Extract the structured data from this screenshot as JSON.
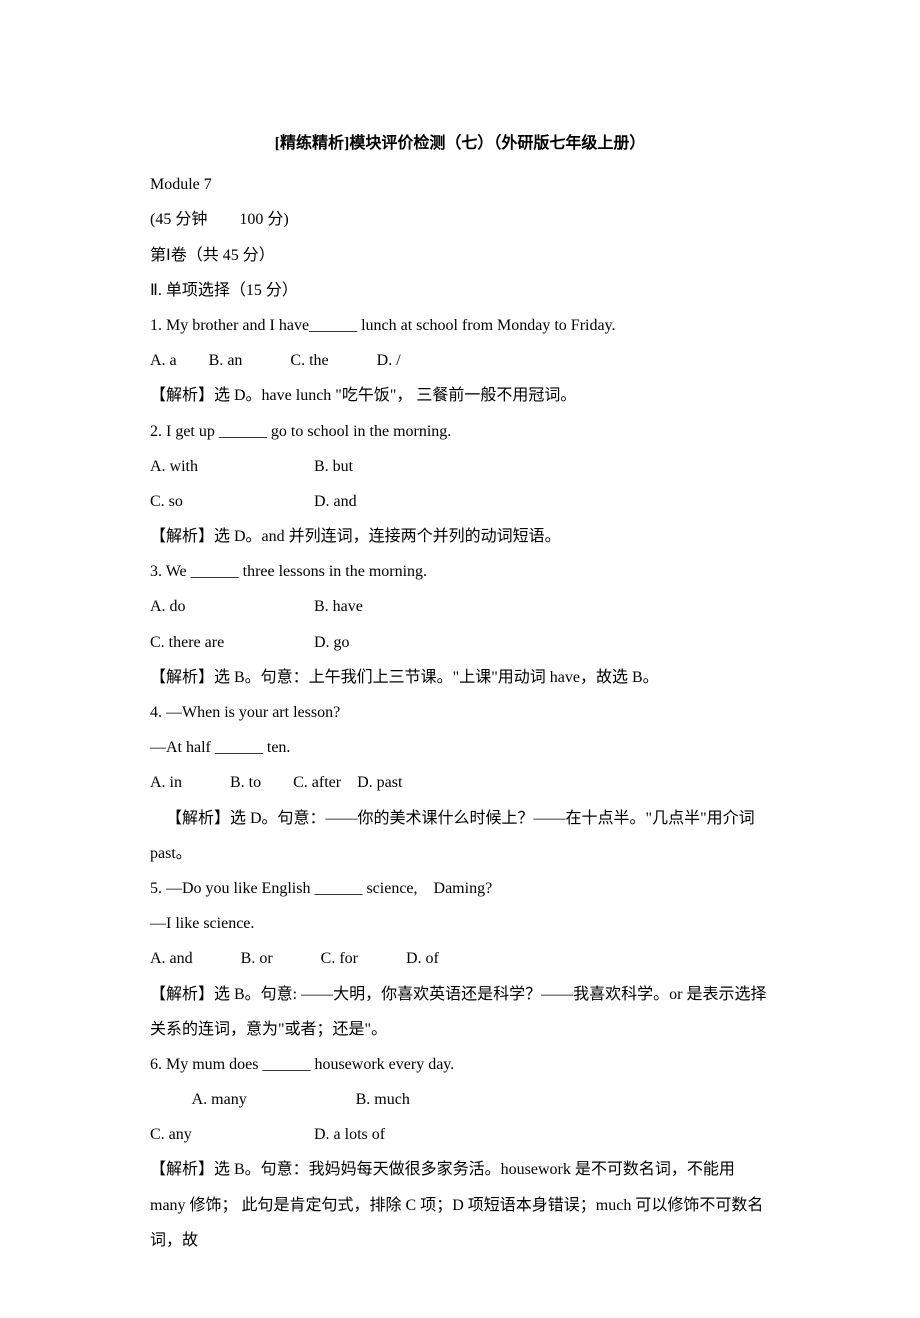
{
  "title": "[精练精析]模块评价检测（七）（外研版七年级上册）",
  "moduleLine": "Module 7",
  "timeLine": "(45 分钟　　100 分)",
  "paperLine": "第Ⅰ卷（共 45 分）",
  "sectionLine": "Ⅱ. 单项选择（15 分）",
  "questions": [
    {
      "stem": "1. My brother and I have______ lunch at school from Monday to Friday.",
      "opts_inline": "A. a　　B. an　　　C. the　　　D. /",
      "explain": "【解析】选 D。have lunch \"吃午饭\"，  三餐前一般不用冠词。"
    },
    {
      "stem": "2. I get up ______ go to school in the morning.",
      "opts_two_1": "A. with",
      "opts_two_1b": "B. but",
      "opts_two_2": "C. so",
      "opts_two_2b": "D. and",
      "explain": "【解析】选 D。and 并列连词，连接两个并列的动词短语。"
    },
    {
      "stem": "3. We ______ three lessons in the morning.",
      "opts_two_1": "A. do",
      "opts_two_1b": "B. have",
      "opts_two_2": "C. there are",
      "opts_two_2b": "D. go",
      "explain": "【解析】选 B。句意：上午我们上三节课。\"上课\"用动词 have，故选 B。"
    },
    {
      "stem": "4. —When is your art lesson?",
      "stem2": "—At half ______ ten.",
      "opts_inline": "A. in　　　B. to　　C. after　D. past",
      "explain_indent": "【解析】选 D。句意：——你的美术课什么时候上？——在十点半。\"几点半\"用介词 past。"
    },
    {
      "stem": "5. —Do you like English ______ science,　Daming?",
      "stem2": "—I like science.",
      "opts_inline": "A. and　　　B. or　　　C. for　　　D. of",
      "explain": "【解析】选 B。句意:  ——大明，你喜欢英语还是科学？——我喜欢科学。or 是表示选择关系的连词，意为\"或者；还是\"。"
    },
    {
      "stem": "6. My mum does ______ housework every day.",
      "opts_two_1_indent": "A. many",
      "opts_two_1b": "B. much",
      "opts_two_2": "C. any",
      "opts_two_2b": "D. a lots of",
      "explain": "【解析】选 B。句意：我妈妈每天做很多家务活。housework 是不可数名词，不能用 many 修饰；  此句是肯定句式，排除 C 项；D 项短语本身错误；much 可以修饰不可数名词，故"
    }
  ]
}
